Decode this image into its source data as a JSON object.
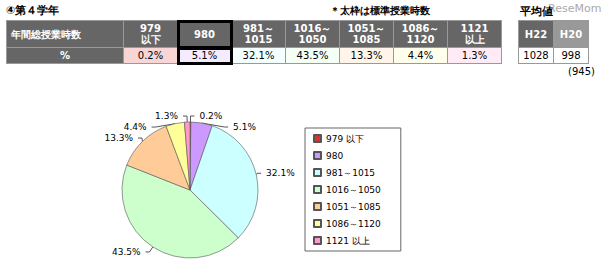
{
  "header": {
    "title": "④第４学年",
    "note": "＊太枠は標準授業時数",
    "watermark": "ReseMom"
  },
  "table": {
    "row_header": "年間総授業時数",
    "row_label": "%",
    "columns": [
      "979\n以下",
      "980",
      "981～\n1015",
      "1016～\n1050",
      "1051～\n1085",
      "1086～\n1120",
      "1121\n以上"
    ],
    "bold_frame": "980"
  },
  "average": {
    "title": "平均値",
    "columns": [
      "H22",
      "H20"
    ],
    "values": [
      1028,
      998
    ],
    "note": "(945)"
  },
  "chart_data": {
    "type": "pie",
    "categories": [
      "979 以下",
      "980",
      "981～1015",
      "1016～1050",
      "1051～1085",
      "1086～1120",
      "1121 以上"
    ],
    "values": [
      0.2,
      5.1,
      32.1,
      43.5,
      13.3,
      4.4,
      1.3
    ],
    "value_labels": [
      "0.2%",
      "5.1%",
      "32.1%",
      "43.5%",
      "13.3%",
      "4.4%",
      "1.3%"
    ],
    "colors": [
      "#e03030",
      "#cc99ff",
      "#ccffff",
      "#ccffcc",
      "#ffcc99",
      "#ffff99",
      "#ff99cc"
    ],
    "data_labels": true,
    "legend": "right"
  }
}
